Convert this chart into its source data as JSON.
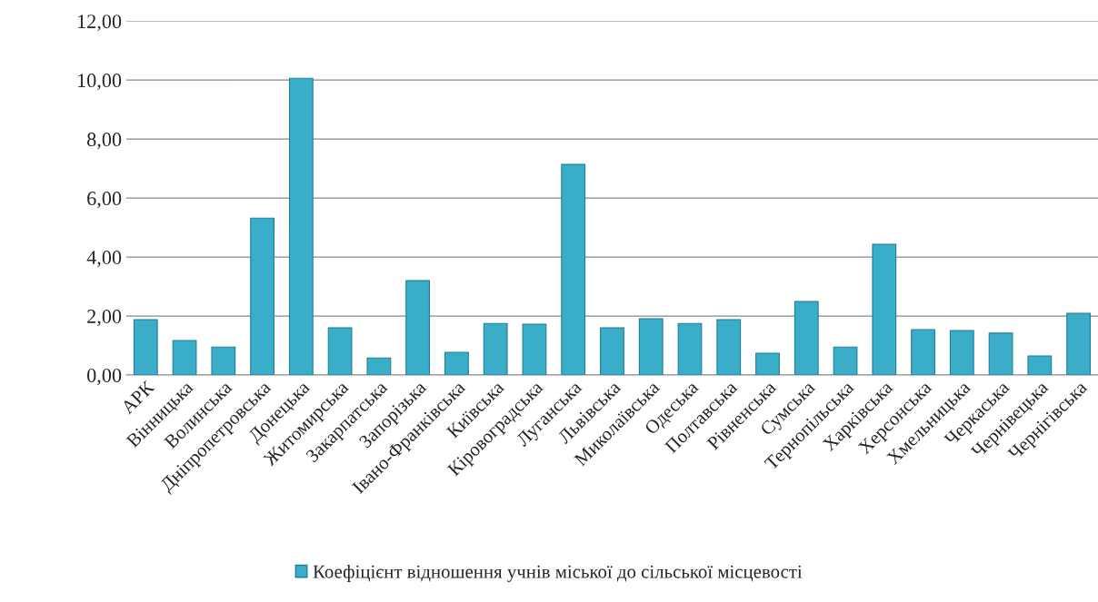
{
  "chart_data": {
    "type": "bar",
    "categories": [
      "АРК",
      "Вінницька",
      "Волинська",
      "Дніпропетровська",
      "Донецька",
      "Житомирська",
      "Закарпатська",
      "Запорізька",
      "Івано-Франківська",
      "Київська",
      "Кіровоградська",
      "Луганська",
      "Львівська",
      "Миколаївська",
      "Одеська",
      "Полтавська",
      "Рівненська",
      "Сумська",
      "Тернопільська",
      "Харківська",
      "Херсонська",
      "Хмельницька",
      "Черкаська",
      "Чернівецька",
      "Чернігівська"
    ],
    "series": [
      {
        "name": "Коефіцієнт відношення учнів міської до сільської місцевості",
        "color": "#3aaec8",
        "values": [
          1.88,
          1.17,
          0.95,
          5.32,
          10.06,
          1.6,
          0.58,
          3.2,
          0.77,
          1.75,
          1.72,
          7.14,
          1.6,
          1.91,
          1.75,
          1.88,
          0.74,
          2.49,
          0.95,
          4.43,
          1.54,
          1.51,
          1.42,
          0.65,
          2.09
        ]
      }
    ],
    "ylim": [
      0,
      12
    ],
    "yticks": [
      {
        "value": 0,
        "label": "0,00"
      },
      {
        "value": 2,
        "label": "2,00"
      },
      {
        "value": 4,
        "label": "4,00"
      },
      {
        "value": 6,
        "label": "6,00"
      },
      {
        "value": 8,
        "label": "8,00"
      },
      {
        "value": 10,
        "label": "10,00"
      },
      {
        "value": 12,
        "label": "12,00"
      }
    ],
    "grid": "y",
    "legend": "bottom"
  }
}
